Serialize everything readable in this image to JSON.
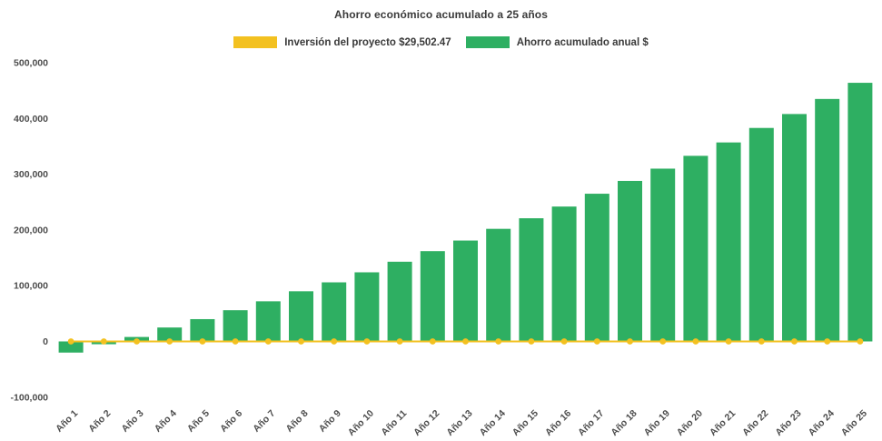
{
  "title": "Ahorro económico acumulado a 25 años",
  "legend": [
    {
      "id": "investment",
      "label": "Inversión del proyecto $29,502.47",
      "color": "#F3C120"
    },
    {
      "id": "savings",
      "label": "Ahorro acumulado anual $",
      "color": "#2EAF62"
    }
  ],
  "colors": {
    "accent_yellow": "#F3C120",
    "accent_green": "#2EAF62",
    "axis_text": "#4c4c4c",
    "title_text": "#3a3a3a",
    "background": "#ffffff"
  },
  "chart_data": {
    "type": "bar",
    "title": "Ahorro económico acumulado a 25 años",
    "categories": [
      "Año 1",
      "Año 2",
      "Año 3",
      "Año 4",
      "Año 5",
      "Año 6",
      "Año 7",
      "Año 8",
      "Año 9",
      "Año 10",
      "Año 11",
      "Año 12",
      "Año 13",
      "Año 14",
      "Año 15",
      "Año 16",
      "Año 17",
      "Año 18",
      "Año 19",
      "Año 20",
      "Año 21",
      "Año 22",
      "Año 23",
      "Año 24",
      "Año 25"
    ],
    "series": [
      {
        "name": "Ahorro acumulado anual $",
        "type": "bar",
        "color": "#2EAF62",
        "values": [
          -20000,
          -5000,
          8000,
          25000,
          40000,
          56000,
          72000,
          90000,
          106000,
          124000,
          143000,
          162000,
          181000,
          202000,
          221000,
          242000,
          265000,
          288000,
          310000,
          333000,
          357000,
          383000,
          408000,
          435000,
          464000
        ]
      },
      {
        "name": "Inversión del proyecto $29,502.47",
        "type": "line",
        "color": "#F3C120",
        "marker": "circle",
        "constant_value": 0
      }
    ],
    "ylim": [
      -100000,
      500000
    ],
    "yticks": {
      "values": [
        500000,
        400000,
        300000,
        200000,
        100000,
        0,
        -100000
      ],
      "labels": [
        "500,000",
        "400,000",
        "300,000",
        "200,000",
        "100,000",
        "0",
        "-100,000"
      ]
    },
    "grid": false,
    "legend_position": "top",
    "x_label_rotation": -45
  }
}
